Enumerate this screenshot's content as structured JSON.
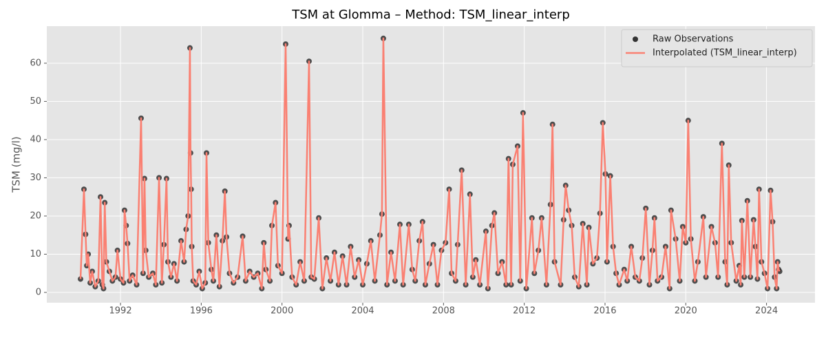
{
  "chart_data": {
    "type": "line",
    "title": "TSM at Glomma – Method: TSM_linear_interp",
    "y_label": "TSM (mg/l)",
    "xlim": [
      1988.35,
      2026.4
    ],
    "xticks": [
      1992,
      1996,
      2000,
      2004,
      2008,
      2012,
      2016,
      2020,
      2024
    ],
    "ylim": [
      -2.7,
      69.7
    ],
    "yticks": [
      0,
      10,
      20,
      30,
      40,
      50,
      60
    ],
    "grid": true,
    "legend": "upper right",
    "x": [
      1990.02,
      1990.19,
      1990.27,
      1990.33,
      1990.4,
      1990.5,
      1990.6,
      1990.75,
      1990.9,
      1991.01,
      1991.1,
      1991.16,
      1991.22,
      1991.3,
      1991.45,
      1991.6,
      1991.75,
      1991.85,
      1992.0,
      1992.15,
      1992.2,
      1992.28,
      1992.35,
      1992.45,
      1992.6,
      1992.8,
      1993.02,
      1993.12,
      1993.19,
      1993.25,
      1993.4,
      1993.6,
      1993.75,
      1993.91,
      1994.05,
      1994.15,
      1994.28,
      1994.35,
      1994.5,
      1994.65,
      1994.8,
      1995.0,
      1995.15,
      1995.25,
      1995.35,
      1995.44,
      1995.47,
      1995.5,
      1995.53,
      1995.6,
      1995.75,
      1995.9,
      1996.05,
      1996.2,
      1996.26,
      1996.35,
      1996.5,
      1996.6,
      1996.75,
      1996.9,
      1997.05,
      1997.17,
      1997.25,
      1997.4,
      1997.6,
      1997.8,
      1998.05,
      1998.2,
      1998.4,
      1998.6,
      1998.8,
      1999.0,
      1999.1,
      1999.2,
      1999.4,
      1999.5,
      1999.68,
      1999.8,
      2000.0,
      2000.18,
      2000.3,
      2000.35,
      2000.5,
      2000.7,
      2000.9,
      2001.1,
      2001.34,
      2001.45,
      2001.6,
      2001.82,
      2002.0,
      2002.2,
      2002.4,
      2002.6,
      2002.8,
      2003.0,
      2003.2,
      2003.4,
      2003.6,
      2003.8,
      2004.0,
      2004.2,
      2004.4,
      2004.6,
      2004.85,
      2004.95,
      2005.02,
      2005.2,
      2005.4,
      2005.6,
      2005.84,
      2006.0,
      2006.28,
      2006.45,
      2006.6,
      2006.8,
      2006.96,
      2007.1,
      2007.3,
      2007.5,
      2007.7,
      2007.9,
      2008.1,
      2008.28,
      2008.4,
      2008.6,
      2008.7,
      2008.9,
      2009.1,
      2009.31,
      2009.45,
      2009.6,
      2009.8,
      2010.1,
      2010.2,
      2010.4,
      2010.52,
      2010.7,
      2010.9,
      2011.1,
      2011.22,
      2011.35,
      2011.43,
      2011.67,
      2011.8,
      2011.94,
      2012.1,
      2012.38,
      2012.5,
      2012.7,
      2012.86,
      2013.1,
      2013.3,
      2013.4,
      2013.5,
      2013.8,
      2013.95,
      2014.05,
      2014.2,
      2014.35,
      2014.5,
      2014.7,
      2014.9,
      2015.1,
      2015.2,
      2015.4,
      2015.6,
      2015.75,
      2015.89,
      2016.02,
      2016.1,
      2016.26,
      2016.4,
      2016.55,
      2016.7,
      2016.95,
      2017.1,
      2017.3,
      2017.5,
      2017.7,
      2017.85,
      2018.02,
      2018.2,
      2018.35,
      2018.45,
      2018.6,
      2018.8,
      2019.0,
      2019.2,
      2019.27,
      2019.5,
      2019.7,
      2019.85,
      2020.0,
      2020.12,
      2020.25,
      2020.45,
      2020.6,
      2020.87,
      2021.0,
      2021.27,
      2021.45,
      2021.6,
      2021.79,
      2021.95,
      2022.05,
      2022.13,
      2022.25,
      2022.5,
      2022.65,
      2022.72,
      2022.78,
      2022.9,
      2023.05,
      2023.2,
      2023.36,
      2023.45,
      2023.55,
      2023.63,
      2023.75,
      2023.9,
      2024.05,
      2024.2,
      2024.3,
      2024.4,
      2024.5,
      2024.55,
      2024.6,
      2024.65
    ],
    "series": [
      {
        "name": "Raw Observations",
        "style": "scatter",
        "color": "#333333",
        "values": [
          3.5,
          27,
          15.2,
          7,
          10,
          2.5,
          5.5,
          1.5,
          3,
          25,
          2,
          1,
          23.5,
          8,
          5.5,
          3,
          4,
          11,
          3.5,
          2.5,
          21.5,
          17.5,
          12.8,
          3,
          4.5,
          2,
          45.6,
          5,
          29.8,
          11,
          4,
          5,
          2,
          30,
          2.5,
          12.5,
          29.8,
          8,
          4,
          7.5,
          3,
          13.5,
          8,
          16.5,
          20,
          64,
          36.5,
          27,
          12,
          3,
          2,
          5.5,
          1,
          2.5,
          36.5,
          13,
          6,
          3,
          15,
          1.5,
          13.5,
          26.5,
          14.5,
          5,
          2.5,
          4,
          14.7,
          3,
          5.5,
          4,
          5,
          1,
          13,
          6,
          3,
          17.5,
          23.5,
          7,
          5,
          65,
          14,
          17.5,
          4,
          2,
          8,
          3,
          60.5,
          4,
          3.5,
          19.5,
          1,
          9,
          3,
          10.5,
          2,
          9.5,
          2,
          12,
          4,
          8.5,
          2,
          7.5,
          13.5,
          3,
          15,
          20.5,
          66.5,
          2,
          10.5,
          3,
          17.8,
          2,
          17.8,
          6,
          3,
          13.5,
          18.5,
          2,
          7.5,
          12.5,
          2,
          11,
          13,
          27,
          5,
          3,
          12.5,
          32,
          2,
          25.7,
          4,
          8.5,
          2,
          16,
          1,
          17.5,
          20.8,
          5,
          8,
          2,
          35,
          2,
          33.5,
          38.3,
          3,
          47,
          1,
          19.5,
          5,
          11,
          19.5,
          2,
          23,
          44,
          8,
          2,
          19,
          28,
          21.5,
          17.5,
          4,
          1.5,
          18,
          2,
          17,
          7.5,
          9,
          20.7,
          44.4,
          31,
          8,
          30.5,
          12,
          5,
          2,
          6,
          3,
          12,
          4,
          3,
          9,
          22,
          2,
          11,
          19.5,
          3,
          4,
          12,
          1,
          21.5,
          14,
          3,
          17.2,
          13,
          45,
          14,
          3,
          8,
          19.8,
          4,
          17.2,
          13,
          4,
          39,
          8,
          2,
          33.3,
          13,
          3,
          7,
          2,
          18.8,
          4,
          24,
          4,
          19,
          12,
          3.5,
          27,
          8,
          5,
          1,
          26.7,
          18.5,
          4,
          1,
          8,
          6,
          5.5
        ]
      },
      {
        "name": "Interpolated (TSM_linear_interp)",
        "style": "line",
        "color": "#fa8072",
        "values": [
          3.5,
          27,
          15.2,
          7,
          10,
          2.5,
          5.5,
          1.5,
          3,
          25,
          2,
          1,
          23.5,
          8,
          5.5,
          3,
          4,
          11,
          3.5,
          2.5,
          21.5,
          17.5,
          12.8,
          3,
          4.5,
          2,
          45.6,
          5,
          29.8,
          11,
          4,
          5,
          2,
          30,
          2.5,
          12.5,
          29.8,
          8,
          4,
          7.5,
          3,
          13.5,
          8,
          16.5,
          20,
          64,
          36.5,
          27,
          12,
          3,
          2,
          5.5,
          1,
          2.5,
          36.5,
          13,
          6,
          3,
          15,
          1.5,
          13.5,
          26.5,
          14.5,
          5,
          2.5,
          4,
          14.7,
          3,
          5.5,
          4,
          5,
          1,
          13,
          6,
          3,
          17.5,
          23.5,
          7,
          5,
          65,
          14,
          17.5,
          4,
          2,
          8,
          3,
          60.5,
          4,
          3.5,
          19.5,
          1,
          9,
          3,
          10.5,
          2,
          9.5,
          2,
          12,
          4,
          8.5,
          2,
          7.5,
          13.5,
          3,
          15,
          20.5,
          66.5,
          2,
          10.5,
          3,
          17.8,
          2,
          17.8,
          6,
          3,
          13.5,
          18.5,
          2,
          7.5,
          12.5,
          2,
          11,
          13,
          27,
          5,
          3,
          12.5,
          32,
          2,
          25.7,
          4,
          8.5,
          2,
          16,
          1,
          17.5,
          20.8,
          5,
          8,
          2,
          35,
          2,
          33.5,
          38.3,
          3,
          47,
          1,
          19.5,
          5,
          11,
          19.5,
          2,
          23,
          44,
          8,
          2,
          19,
          28,
          21.5,
          17.5,
          4,
          1.5,
          18,
          2,
          17,
          7.5,
          9,
          20.7,
          44.4,
          31,
          8,
          30.5,
          12,
          5,
          2,
          6,
          3,
          12,
          4,
          3,
          9,
          22,
          2,
          11,
          19.5,
          3,
          4,
          12,
          1,
          21.5,
          14,
          3,
          17.2,
          13,
          45,
          14,
          3,
          8,
          19.8,
          4,
          17.2,
          13,
          4,
          39,
          8,
          2,
          33.3,
          13,
          3,
          7,
          2,
          18.8,
          4,
          24,
          4,
          19,
          12,
          3.5,
          27,
          8,
          5,
          1,
          26.7,
          18.5,
          4,
          1,
          8,
          6,
          5.5
        ]
      }
    ]
  }
}
